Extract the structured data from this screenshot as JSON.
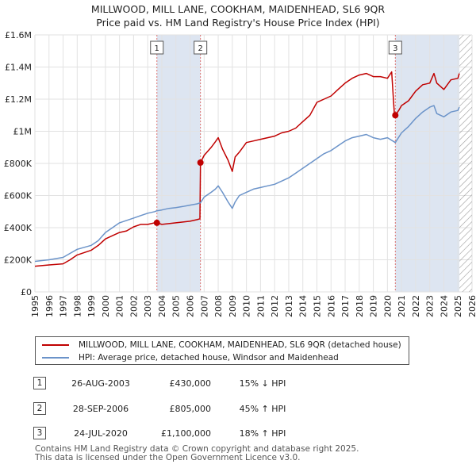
{
  "title_line1": "MILLWOOD, MILL LANE, COOKHAM, MAIDENHEAD, SL6 9QR",
  "title_line2": "Price paid vs. HM Land Registry's House Price Index (HPI)",
  "colors": {
    "property": "#c00000",
    "hpi": "#6b93c9",
    "shade": "#dde5f1",
    "hatch": "#9a9a9a"
  },
  "chart_data": {
    "type": "line",
    "title": "MILLWOOD, MILL LANE, COOKHAM, MAIDENHEAD, SL6 9QR",
    "subtitle": "Price paid vs. HM Land Registry's House Price Index (HPI)",
    "xlabel": "",
    "ylabel": "",
    "xlim": [
      1995,
      2026
    ],
    "ylim": [
      0,
      1600000
    ],
    "x_ticks": [
      1995,
      1996,
      1997,
      1998,
      1999,
      2000,
      2001,
      2002,
      2003,
      2004,
      2005,
      2006,
      2007,
      2008,
      2009,
      2010,
      2011,
      2012,
      2013,
      2014,
      2015,
      2016,
      2017,
      2018,
      2019,
      2020,
      2021,
      2022,
      2023,
      2024,
      2025,
      2026
    ],
    "y_ticks": [
      0,
      200000,
      400000,
      600000,
      800000,
      1000000,
      1200000,
      1400000,
      1600000
    ],
    "y_tick_labels": [
      "£0",
      "£200K",
      "£400K",
      "£600K",
      "£800K",
      "£1M",
      "£1.2M",
      "£1.4M",
      "£1.6M"
    ],
    "grid": true,
    "legend_position": "below",
    "forecast_start": 2025.1,
    "series": [
      {
        "name": "MILLWOOD, MILL LANE, COOKHAM, MAIDENHEAD, SL6 9QR (detached house)",
        "key": "property",
        "x": [
          1995.0,
          1996.0,
          1997.0,
          1997.5,
          1998.0,
          1999.0,
          1999.5,
          2000.0,
          2000.5,
          2001.0,
          2001.5,
          2002.0,
          2002.5,
          2003.0,
          2003.5,
          2003.65,
          2004.0,
          2004.5,
          2005.0,
          2005.5,
          2006.0,
          2006.5,
          2006.7,
          2006.74,
          2007.0,
          2007.5,
          2007.8,
          2008.0,
          2008.3,
          2008.7,
          2009.0,
          2009.2,
          2009.5,
          2010.0,
          2010.5,
          2011.0,
          2011.5,
          2012.0,
          2012.5,
          2013.0,
          2013.5,
          2014.0,
          2014.5,
          2015.0,
          2015.5,
          2016.0,
          2016.5,
          2017.0,
          2017.5,
          2018.0,
          2018.5,
          2019.0,
          2019.5,
          2020.0,
          2020.3,
          2020.5,
          2020.56,
          2020.8,
          2021.0,
          2021.5,
          2022.0,
          2022.5,
          2023.0,
          2023.3,
          2023.5,
          2024.0,
          2024.5,
          2025.0,
          2025.1
        ],
        "y": [
          160000,
          168000,
          175000,
          200000,
          230000,
          260000,
          290000,
          330000,
          350000,
          370000,
          380000,
          405000,
          420000,
          420000,
          430000,
          430000,
          420000,
          425000,
          430000,
          435000,
          440000,
          450000,
          455000,
          805000,
          850000,
          900000,
          935000,
          960000,
          890000,
          820000,
          750000,
          840000,
          870000,
          930000,
          940000,
          950000,
          960000,
          970000,
          990000,
          1000000,
          1020000,
          1060000,
          1100000,
          1180000,
          1200000,
          1220000,
          1260000,
          1300000,
          1330000,
          1350000,
          1360000,
          1340000,
          1340000,
          1330000,
          1370000,
          1100000,
          1100000,
          1130000,
          1160000,
          1190000,
          1250000,
          1290000,
          1300000,
          1360000,
          1300000,
          1260000,
          1320000,
          1330000,
          1360000
        ]
      },
      {
        "name": "HPI: Average price, detached house, Windsor and Maidenhead",
        "key": "hpi",
        "x": [
          1995.0,
          1996.0,
          1997.0,
          1997.5,
          1998.0,
          1999.0,
          1999.5,
          2000.0,
          2000.5,
          2001.0,
          2001.5,
          2002.0,
          2002.5,
          2003.0,
          2003.5,
          2003.65,
          2004.0,
          2004.5,
          2005.0,
          2005.5,
          2006.0,
          2006.5,
          2006.74,
          2007.0,
          2007.5,
          2007.8,
          2008.0,
          2008.3,
          2008.7,
          2009.0,
          2009.2,
          2009.5,
          2010.0,
          2010.5,
          2011.0,
          2011.5,
          2012.0,
          2012.5,
          2013.0,
          2013.5,
          2014.0,
          2014.5,
          2015.0,
          2015.5,
          2016.0,
          2016.5,
          2017.0,
          2017.5,
          2018.0,
          2018.5,
          2019.0,
          2019.5,
          2020.0,
          2020.56,
          2021.0,
          2021.5,
          2022.0,
          2022.5,
          2023.0,
          2023.3,
          2023.5,
          2024.0,
          2024.5,
          2025.0,
          2025.1
        ],
        "y": [
          190000,
          200000,
          215000,
          240000,
          265000,
          290000,
          320000,
          370000,
          400000,
          430000,
          445000,
          460000,
          475000,
          490000,
          500000,
          505000,
          510000,
          520000,
          525000,
          532000,
          540000,
          548000,
          555000,
          590000,
          620000,
          640000,
          660000,
          620000,
          560000,
          520000,
          560000,
          600000,
          620000,
          640000,
          650000,
          660000,
          670000,
          690000,
          710000,
          740000,
          770000,
          800000,
          830000,
          860000,
          880000,
          910000,
          940000,
          960000,
          970000,
          980000,
          960000,
          950000,
          960000,
          930000,
          990000,
          1030000,
          1080000,
          1120000,
          1150000,
          1160000,
          1110000,
          1090000,
          1120000,
          1130000,
          1150000
        ]
      }
    ],
    "sales": [
      {
        "label": "1",
        "x": 2003.65,
        "y": 430000
      },
      {
        "label": "2",
        "x": 2006.74,
        "y": 805000
      },
      {
        "label": "3",
        "x": 2020.56,
        "y": 1100000
      }
    ],
    "shaded_ranges": [
      [
        2003.65,
        2006.74
      ],
      [
        2020.56,
        2025.1
      ]
    ]
  },
  "legend": {
    "property_label": "MILLWOOD, MILL LANE, COOKHAM, MAIDENHEAD, SL6 9QR (detached house)",
    "hpi_label": "HPI: Average price, detached house, Windsor and Maidenhead"
  },
  "sales_table": [
    {
      "num": "1",
      "date": "26-AUG-2003",
      "price": "£430,000",
      "hpi": "15% ↓ HPI"
    },
    {
      "num": "2",
      "date": "28-SEP-2006",
      "price": "£805,000",
      "hpi": "45% ↑ HPI"
    },
    {
      "num": "3",
      "date": "24-JUL-2020",
      "price": "£1,100,000",
      "hpi": "18% ↑ HPI"
    }
  ],
  "footer_line1": "Contains HM Land Registry data © Crown copyright and database right 2025.",
  "footer_line2": "This data is licensed under the Open Government Licence v3.0."
}
